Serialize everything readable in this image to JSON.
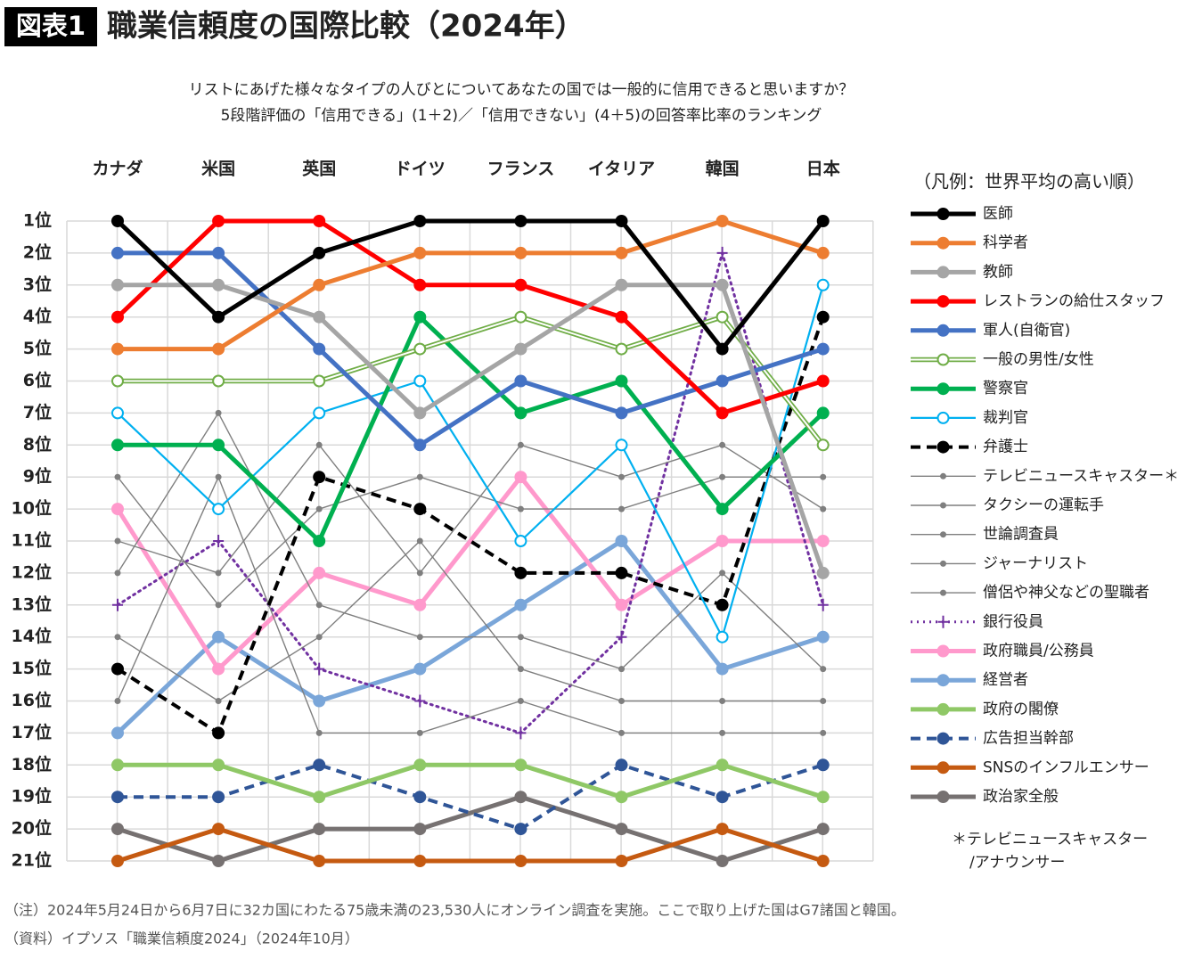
{
  "header": {
    "badge": "図表1",
    "title": "職業信頼度の国際比較（2024年）"
  },
  "chart_data": {
    "type": "line",
    "subtitle": [
      "リストにあげた様々なタイプの人びとについてあなたの国では一般的に信用できると思いますか？",
      "5段階評価の「信用できる」(1＋2)／「信用できない」(4＋5)の回答率比率のランキング"
    ],
    "categories": [
      "カナダ",
      "米国",
      "英国",
      "ドイツ",
      "フランス",
      "イタリア",
      "韓国",
      "日本"
    ],
    "ylim": [
      1,
      21
    ],
    "y_inverted": true,
    "grid": true,
    "yticks": [
      {
        "value": 1,
        "label": "1位"
      },
      {
        "value": 2,
        "label": "2位"
      },
      {
        "value": 3,
        "label": "3位"
      },
      {
        "value": 4,
        "label": "4位"
      },
      {
        "value": 5,
        "label": "5位"
      },
      {
        "value": 6,
        "label": "6位"
      },
      {
        "value": 7,
        "label": "7位"
      },
      {
        "value": 8,
        "label": "8位"
      },
      {
        "value": 9,
        "label": "9位"
      },
      {
        "value": 10,
        "label": "10位"
      },
      {
        "value": 11,
        "label": "11位"
      },
      {
        "value": 12,
        "label": "12位"
      },
      {
        "value": 13,
        "label": "13位"
      },
      {
        "value": 14,
        "label": "14位"
      },
      {
        "value": 15,
        "label": "15位"
      },
      {
        "value": 16,
        "label": "16位"
      },
      {
        "value": 17,
        "label": "17位"
      },
      {
        "value": 18,
        "label": "18位"
      },
      {
        "value": 19,
        "label": "19位"
      },
      {
        "value": 20,
        "label": "20位"
      },
      {
        "value": 21,
        "label": "21位"
      }
    ],
    "legend_title": "（凡例：世界平均の高い順）",
    "legend_position": "right",
    "legend_note": [
      "＊テレビニュースキャスター",
      "/アナウンサー"
    ],
    "series": [
      {
        "name": "医師",
        "color": "#000000",
        "line": "thick",
        "marker": "filled",
        "values": [
          1,
          4,
          2,
          1,
          1,
          1,
          5,
          1
        ]
      },
      {
        "name": "科学者",
        "color": "#ed7d31",
        "line": "thick",
        "marker": "filled",
        "values": [
          5,
          5,
          3,
          2,
          2,
          2,
          1,
          2
        ]
      },
      {
        "name": "教師",
        "color": "#a5a5a5",
        "line": "thick",
        "marker": "filled",
        "values": [
          3,
          3,
          4,
          7,
          5,
          3,
          3,
          12
        ]
      },
      {
        "name": "レストランの給仕スタッフ",
        "color": "#ff0000",
        "line": "thick",
        "marker": "filled",
        "values": [
          4,
          1,
          1,
          3,
          3,
          4,
          7,
          6
        ]
      },
      {
        "name": "軍人(自衛官)",
        "color": "#4472c4",
        "line": "thick",
        "marker": "filled",
        "values": [
          2,
          2,
          5,
          8,
          6,
          7,
          6,
          5
        ]
      },
      {
        "name": "一般の男性/女性",
        "color": "#70ad47",
        "line": "double",
        "marker": "open",
        "values": [
          6,
          6,
          6,
          5,
          4,
          5,
          4,
          8
        ]
      },
      {
        "name": "警察官",
        "color": "#00b050",
        "line": "thick",
        "marker": "filled",
        "values": [
          8,
          8,
          11,
          4,
          7,
          6,
          10,
          7
        ]
      },
      {
        "name": "裁判官",
        "color": "#00b0f0",
        "line": "medium",
        "marker": "open",
        "values": [
          7,
          10,
          7,
          6,
          11,
          8,
          14,
          3
        ]
      },
      {
        "name": "弁護士",
        "color": "#000000",
        "line": "dashed",
        "marker": "filled",
        "values": [
          15,
          17,
          9,
          10,
          12,
          12,
          13,
          4
        ]
      },
      {
        "name": "テレビニュースキャスター＊",
        "color": "#7f7f7f",
        "line": "thin",
        "marker": "small",
        "values": [
          9,
          13,
          10,
          9,
          10,
          10,
          9,
          9
        ]
      },
      {
        "name": "タクシーの運転手",
        "color": "#7f7f7f",
        "line": "thin",
        "marker": "small",
        "values": [
          11,
          12,
          8,
          12,
          8,
          9,
          8,
          10
        ]
      },
      {
        "name": "世論調査員",
        "color": "#7f7f7f",
        "line": "thin",
        "marker": "small",
        "values": [
          12,
          7,
          13,
          14,
          14,
          15,
          12,
          15
        ]
      },
      {
        "name": "ジャーナリスト",
        "color": "#7f7f7f",
        "line": "thin",
        "marker": "small",
        "values": [
          14,
          16,
          14,
          11,
          15,
          16,
          16,
          16
        ]
      },
      {
        "name": "僧侶や神父などの聖職者",
        "color": "#7f7f7f",
        "line": "thin",
        "marker": "small",
        "values": [
          16,
          9,
          17,
          17,
          16,
          17,
          17,
          17
        ]
      },
      {
        "name": "銀行役員",
        "color": "#7030a0",
        "line": "dotted",
        "marker": "plus",
        "values": [
          13,
          11,
          15,
          16,
          17,
          14,
          2,
          13
        ]
      },
      {
        "name": "政府職員/公務員",
        "color": "#ff99cc",
        "line": "thick",
        "marker": "filled",
        "values": [
          10,
          15,
          12,
          13,
          9,
          13,
          11,
          11
        ]
      },
      {
        "name": "経営者",
        "color": "#7aa6d9",
        "line": "thick",
        "marker": "filled",
        "values": [
          17,
          14,
          16,
          15,
          13,
          11,
          15,
          14
        ]
      },
      {
        "name": "政府の閣僚",
        "color": "#8fc866",
        "line": "thick",
        "marker": "filled",
        "values": [
          18,
          18,
          19,
          18,
          18,
          19,
          18,
          19
        ]
      },
      {
        "name": "広告担当幹部",
        "color": "#2f5597",
        "line": "dashed",
        "marker": "filled",
        "values": [
          19,
          19,
          18,
          19,
          20,
          18,
          19,
          18
        ]
      },
      {
        "name": "SNSのインフルエンサー",
        "color": "#c55a11",
        "line": "thick",
        "marker": "filled",
        "values": [
          21,
          20,
          21,
          21,
          21,
          21,
          20,
          21
        ]
      },
      {
        "name": "政治家全般",
        "color": "#767171",
        "line": "thick",
        "marker": "filled",
        "values": [
          20,
          21,
          20,
          20,
          19,
          20,
          21,
          20
        ]
      }
    ]
  },
  "notes": [
    "（注）2024年5月24日から6月7日に32カ国にわたる75歳未満の23,530人にオンライン調査を実施。ここで取り上げた国はG7諸国と韓国。",
    "（資料）イプソス「職業信頼度2024」（2024年10月）"
  ]
}
